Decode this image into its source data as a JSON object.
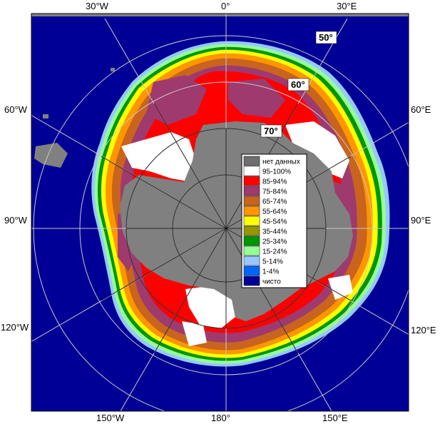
{
  "map": {
    "lon_labels": {
      "w30": "30°W",
      "zero": "0°",
      "e30": "30°E",
      "w60": "60°W",
      "e60": "60°E",
      "w90": "90°W",
      "e90": "90°E",
      "w120": "120°W",
      "e120": "120°E",
      "w150": "150°W",
      "l180": "180°",
      "e150": "150°E"
    },
    "lat_labels": {
      "l50": "50°",
      "l60": "60°",
      "l70": "70°"
    }
  },
  "legend": {
    "items": [
      {
        "label": "нет данных",
        "color": "#6e6e6e"
      },
      {
        "label": "95-100%",
        "color": "#ffffff"
      },
      {
        "label": "85-94%",
        "color": "#ff0000"
      },
      {
        "label": "75-84%",
        "color": "#9e3a6e"
      },
      {
        "label": "65-74%",
        "color": "#c8641e"
      },
      {
        "label": "55-64%",
        "color": "#ff9600"
      },
      {
        "label": "45-54%",
        "color": "#ffff00"
      },
      {
        "label": "35-44%",
        "color": "#969600"
      },
      {
        "label": "25-34%",
        "color": "#009600"
      },
      {
        "label": "15-24%",
        "color": "#96ff96"
      },
      {
        "label": "5-14%",
        "color": "#96c8ff"
      },
      {
        "label": "1-4%",
        "color": "#0064ff"
      },
      {
        "label": "чисто",
        "color": "#000096"
      }
    ]
  },
  "colors": {
    "ocean": "#000096",
    "land": "#808080",
    "grid": "#c8c8c8"
  }
}
